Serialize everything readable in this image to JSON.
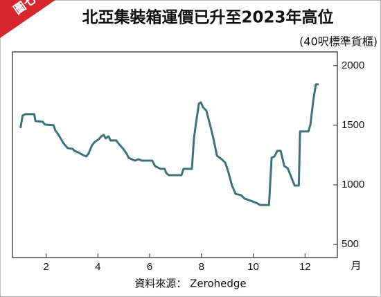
{
  "badge": "圖七",
  "chart_data": {
    "type": "line",
    "title": "北亞集裝箱運價已升至2023年高位",
    "subtitle": "(40呎標準貨櫃)",
    "x_label": "月",
    "source": "資料來源： Zerohedge",
    "x": [
      1.01,
      1.09,
      1.2,
      1.54,
      1.59,
      1.87,
      1.95,
      2.29,
      2.35,
      2.48,
      2.67,
      2.83,
      3.02,
      3.1,
      3.29,
      3.42,
      3.55,
      3.64,
      3.77,
      3.88,
      4.01,
      4.14,
      4.22,
      4.3,
      4.41,
      4.49,
      4.71,
      4.81,
      4.98,
      5.11,
      5.19,
      5.3,
      5.43,
      5.57,
      5.7,
      6.1,
      6.21,
      6.42,
      6.58,
      6.64,
      6.74,
      7.23,
      7.31,
      7.63,
      7.71,
      7.79,
      7.9,
      7.98,
      8.06,
      8.19,
      8.33,
      8.46,
      8.6,
      8.78,
      8.92,
      9.05,
      9.18,
      9.32,
      9.53,
      9.67,
      9.91,
      10.12,
      10.26,
      10.61,
      10.71,
      10.82,
      10.93,
      11.06,
      11.2,
      11.33,
      11.46,
      11.6,
      11.76,
      11.81,
      12.13,
      12.21,
      12.32,
      12.42,
      12.53
    ],
    "series": [
      {
        "color": "#3d7278",
        "values": [
          1477,
          1581,
          1593,
          1593,
          1535,
          1529,
          1506,
          1500,
          1459,
          1419,
          1349,
          1308,
          1302,
          1285,
          1267,
          1250,
          1238,
          1262,
          1331,
          1360,
          1378,
          1407,
          1419,
          1390,
          1407,
          1372,
          1372,
          1343,
          1302,
          1262,
          1227,
          1215,
          1203,
          1215,
          1203,
          1203,
          1157,
          1134,
          1134,
          1099,
          1081,
          1081,
          1134,
          1134,
          1390,
          1517,
          1680,
          1692,
          1651,
          1622,
          1506,
          1390,
          1244,
          1215,
          1186,
          1099,
          994,
          924,
          913,
          884,
          866,
          849,
          831,
          831,
          1227,
          1238,
          1285,
          1285,
          1157,
          1140,
          1070,
          994,
          994,
          1448,
          1448,
          1506,
          1709,
          1843,
          1843
        ]
      }
    ],
    "xlim": [
      0.7,
      13.25
    ],
    "ylim": [
      390,
      2115
    ],
    "xticks": [
      2,
      4,
      6,
      8,
      10,
      12
    ],
    "yticks": [
      500,
      1000,
      1500,
      2000
    ]
  }
}
